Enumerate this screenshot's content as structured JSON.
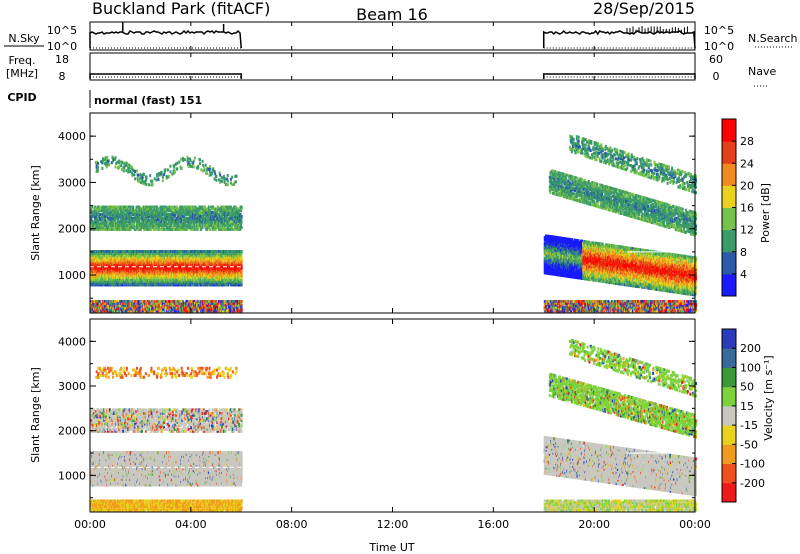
{
  "header": {
    "radar": "Buckland Park (fitACF)",
    "beam": "Beam 16",
    "date": "28/Sep/2015"
  },
  "chart_data": [
    {
      "type": "line",
      "name": "noise-panel",
      "left_labels": [
        "N.Sky",
        "10^5",
        "10^0"
      ],
      "right_labels": [
        "N.Search",
        "10^5",
        "10^0"
      ],
      "x_range": [
        "00:00",
        "24:00"
      ],
      "segments": [
        [
          "00:00",
          "06:00"
        ],
        [
          "18:00",
          "24:00"
        ]
      ]
    },
    {
      "type": "line",
      "name": "freq-panel",
      "left_labels": [
        "Freq.",
        "[MHz]",
        "18",
        "8"
      ],
      "right_labels": [
        "Nave",
        "60",
        "0"
      ],
      "segments": [
        [
          "00:00",
          "06:00"
        ],
        [
          "18:00",
          "24:00"
        ]
      ]
    },
    {
      "type": "heatmap",
      "name": "cpid-panel",
      "label": "CPID",
      "text": "normal (fast) 151"
    },
    {
      "type": "heatmap",
      "name": "power-panel",
      "ylabel": "Slant Range [km]",
      "yticks": [
        "1000",
        "2000",
        "3000",
        "4000"
      ],
      "ylim": [
        180,
        4500
      ],
      "colorbar": {
        "label": "Power [dB]",
        "ticks": [
          "4",
          "8",
          "12",
          "16",
          "20",
          "24",
          "28"
        ],
        "colors": [
          "#1a1aff",
          "#2a5aa8",
          "#3b9a6a",
          "#77c24a",
          "#e8d21e",
          "#f08a1e",
          "#e63e1a",
          "#ff0000"
        ]
      },
      "regions": [
        {
          "t0": 0.0,
          "t1": 6.0,
          "r0": 800,
          "r1": 1550,
          "level": "high"
        },
        {
          "t0": 0.0,
          "t1": 6.0,
          "r0": 2050,
          "r1": 2500,
          "level": "low"
        },
        {
          "t0": 18.0,
          "t1": 24.0,
          "r0": 900,
          "r1": 1600,
          "level": "high"
        }
      ]
    },
    {
      "type": "heatmap",
      "name": "velocity-panel",
      "ylabel": "Slant Range [km]",
      "yticks": [
        "1000",
        "2000",
        "3000",
        "4000"
      ],
      "ylim": [
        180,
        4500
      ],
      "colorbar": {
        "label": "Velocity [m s⁻¹]",
        "ticks": [
          "200",
          "100",
          "50",
          "15",
          "-15",
          "-50",
          "-100",
          "-200"
        ],
        "colors": [
          "#2a3ab8",
          "#3a6a9a",
          "#3a9a3a",
          "#7cd23a",
          "#c8c8c0",
          "#e8d21e",
          "#f09a1e",
          "#f0501e",
          "#ee1a1a"
        ]
      }
    }
  ],
  "xaxis": {
    "ticks": [
      "00:00",
      "04:00",
      "08:00",
      "12:00",
      "16:00",
      "20:00",
      "00:00"
    ],
    "label": "Time UT"
  }
}
